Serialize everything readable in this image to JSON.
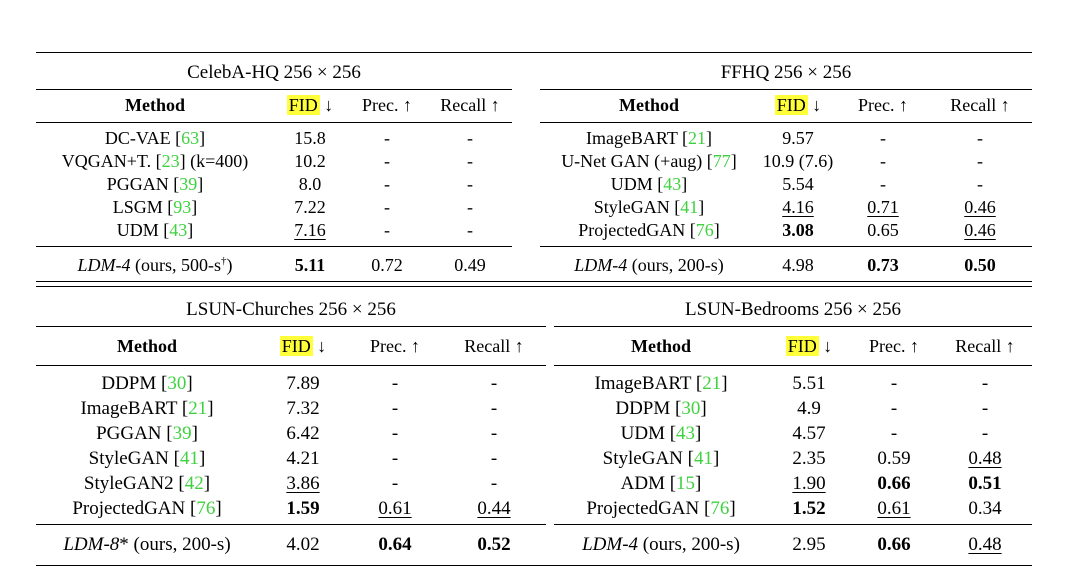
{
  "panels": [
    {
      "title": "CelebA-HQ 256 × 256",
      "headers": {
        "method": "Method",
        "fid": "FID",
        "fid_arrow": "↓",
        "prec": "Prec. ↑",
        "recall": "Recall ↑"
      },
      "rows": [
        {
          "name": "DC-VAE",
          "cite": "63",
          "extra": "",
          "fid": "15.8",
          "prec": "-",
          "recall": "-"
        },
        {
          "name": "VQGAN+T.",
          "cite": "23",
          "extra": " (k=400)",
          "fid": "10.2",
          "prec": "-",
          "recall": "-"
        },
        {
          "name": "PGGAN",
          "cite": "39",
          "extra": "",
          "fid": "8.0",
          "prec": "-",
          "recall": "-"
        },
        {
          "name": "LSGM",
          "cite": "93",
          "extra": "",
          "fid": "7.22",
          "prec": "-",
          "recall": "-"
        },
        {
          "name": "UDM",
          "cite": "43",
          "extra": "",
          "fid": "7.16",
          "fid_style": "ul",
          "prec": "-",
          "recall": "-"
        }
      ],
      "ours": {
        "name": "LDM-4",
        "rest": " (ours, 500-s",
        "sup": "†",
        "close": ")",
        "fid": "5.11",
        "fid_style": "bold",
        "prec": "0.72",
        "recall": "0.49"
      }
    },
    {
      "title": "FFHQ 256 × 256",
      "headers": {
        "method": "Method",
        "fid": "FID",
        "fid_arrow": "↓",
        "prec": "Prec. ↑",
        "recall": "Recall ↑"
      },
      "rows": [
        {
          "name": "ImageBART",
          "cite": "21",
          "extra": "",
          "fid": "9.57",
          "prec": "-",
          "recall": "-"
        },
        {
          "name": "U-Net GAN (+aug)",
          "cite": "77",
          "extra": "",
          "fid": "10.9 (7.6)",
          "prec": "-",
          "recall": "-"
        },
        {
          "name": "UDM",
          "cite": "43",
          "extra": "",
          "fid": "5.54",
          "prec": "-",
          "recall": "-"
        },
        {
          "name": "StyleGAN",
          "cite": "41",
          "extra": "",
          "fid": "4.16",
          "fid_style": "ul",
          "prec": "0.71",
          "prec_style": "ul",
          "recall": "0.46",
          "recall_style": "ul"
        },
        {
          "name": "ProjectedGAN",
          "cite": "76",
          "extra": "",
          "fid": "3.08",
          "fid_style": "bold",
          "prec": "0.65",
          "recall": "0.46",
          "recall_style": "ul"
        }
      ],
      "ours": {
        "name": "LDM-4",
        "rest": " (ours, 200-s)",
        "sup": "",
        "close": "",
        "fid": "4.98",
        "prec": "0.73",
        "prec_style": "bold",
        "recall": "0.50",
        "recall_style": "bold"
      }
    },
    {
      "title": "LSUN-Churches 256 × 256",
      "headers": {
        "method": "Method",
        "fid": "FID",
        "fid_arrow": "↓",
        "prec": "Prec. ↑",
        "recall": "Recall ↑"
      },
      "rows": [
        {
          "name": "DDPM",
          "cite": "30",
          "extra": "",
          "fid": "7.89",
          "prec": "-",
          "recall": "-"
        },
        {
          "name": "ImageBART",
          "cite": "21",
          "extra": "",
          "fid": "7.32",
          "prec": "-",
          "recall": "-"
        },
        {
          "name": "PGGAN",
          "cite": "39",
          "extra": "",
          "fid": "6.42",
          "prec": "-",
          "recall": "-"
        },
        {
          "name": "StyleGAN",
          "cite": "41",
          "extra": "",
          "fid": "4.21",
          "prec": "-",
          "recall": "-"
        },
        {
          "name": "StyleGAN2",
          "cite": "42",
          "extra": "",
          "fid": "3.86",
          "fid_style": "ul",
          "prec": "-",
          "recall": "-"
        },
        {
          "name": "ProjectedGAN",
          "cite": "76",
          "extra": "",
          "fid": "1.59",
          "fid_style": "bold",
          "prec": "0.61",
          "prec_style": "ul",
          "recall": "0.44",
          "recall_style": "ul"
        }
      ],
      "ours": {
        "name": "LDM-8",
        "rest": "* (ours, 200-s)",
        "sup": "",
        "close": "",
        "fid": "4.02",
        "prec": "0.64",
        "prec_style": "bold",
        "recall": "0.52",
        "recall_style": "bold"
      }
    },
    {
      "title": "LSUN-Bedrooms 256 × 256",
      "headers": {
        "method": "Method",
        "fid": "FID",
        "fid_arrow": "↓",
        "prec": "Prec. ↑",
        "recall": "Recall ↑"
      },
      "rows": [
        {
          "name": "ImageBART",
          "cite": "21",
          "extra": "",
          "fid": "5.51",
          "prec": "-",
          "recall": "-"
        },
        {
          "name": "DDPM",
          "cite": "30",
          "extra": "",
          "fid": "4.9",
          "prec": "-",
          "recall": "-"
        },
        {
          "name": "UDM",
          "cite": "43",
          "extra": "",
          "fid": "4.57",
          "prec": "-",
          "recall": "-"
        },
        {
          "name": "StyleGAN",
          "cite": "41",
          "extra": "",
          "fid": "2.35",
          "prec": "0.59",
          "recall": "0.48",
          "recall_style": "ul"
        },
        {
          "name": "ADM",
          "cite": "15",
          "extra": "",
          "fid": "1.90",
          "fid_style": "ul",
          "prec": "0.66",
          "prec_style": "bold",
          "recall": "0.51",
          "recall_style": "bold"
        },
        {
          "name": "ProjectedGAN",
          "cite": "76",
          "extra": "",
          "fid": "1.52",
          "fid_style": "bold",
          "prec": "0.61",
          "prec_style": "ul",
          "recall": "0.34"
        }
      ],
      "ours": {
        "name": "LDM-4",
        "rest": " (ours, 200-s)",
        "sup": "",
        "close": "",
        "fid": "2.95",
        "prec": "0.66",
        "prec_style": "bold",
        "recall": "0.48",
        "recall_style": "ul"
      }
    }
  ]
}
